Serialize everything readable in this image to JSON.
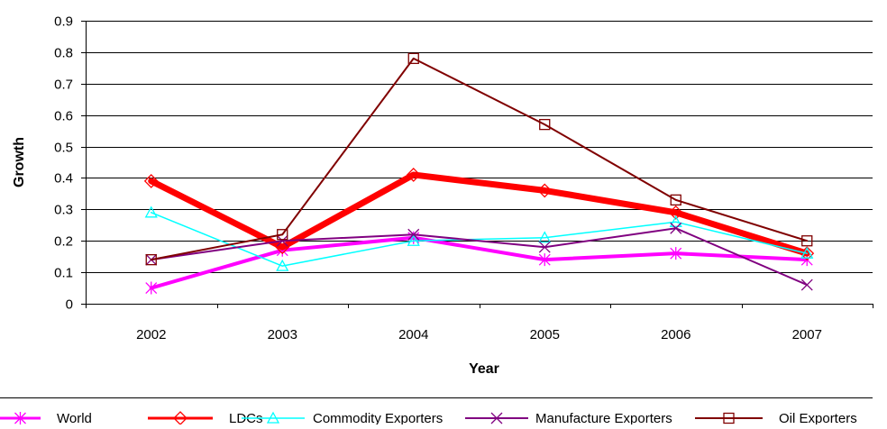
{
  "chart_data": {
    "type": "line",
    "title": "",
    "xlabel": "Year",
    "ylabel": "Growth",
    "categories": [
      "2002",
      "2003",
      "2004",
      "2005",
      "2006",
      "2007"
    ],
    "ylim": [
      0,
      0.9
    ],
    "yticks": [
      "0",
      "0.1",
      "0.2",
      "0.3",
      "0.4",
      "0.5",
      "0.6",
      "0.7",
      "0.8",
      "0.9"
    ],
    "grid": "horizontal",
    "legend_position": "bottom",
    "series": [
      {
        "name": "World",
        "values": [
          0.05,
          0.17,
          0.21,
          0.14,
          0.16,
          0.14
        ],
        "color": "#FF00FF",
        "marker": "asterisk",
        "width": 4
      },
      {
        "name": "LDCs",
        "values": [
          0.39,
          0.18,
          0.41,
          0.36,
          0.29,
          0.16
        ],
        "color": "#FF0000",
        "marker": "diamond",
        "width": 7
      },
      {
        "name": "Commodity Exporters",
        "values": [
          0.29,
          0.12,
          0.2,
          0.21,
          0.26,
          0.16
        ],
        "color": "#00FFFF",
        "marker": "triangle",
        "width": 1.5
      },
      {
        "name": "Manufacture Exporters",
        "values": [
          0.14,
          0.2,
          0.22,
          0.18,
          0.24,
          0.06
        ],
        "color": "#800080",
        "marker": "x",
        "width": 2
      },
      {
        "name": "Oil Exporters",
        "values": [
          0.14,
          0.22,
          0.78,
          0.57,
          0.33,
          0.2
        ],
        "color": "#800000",
        "marker": "square",
        "width": 2
      }
    ]
  }
}
